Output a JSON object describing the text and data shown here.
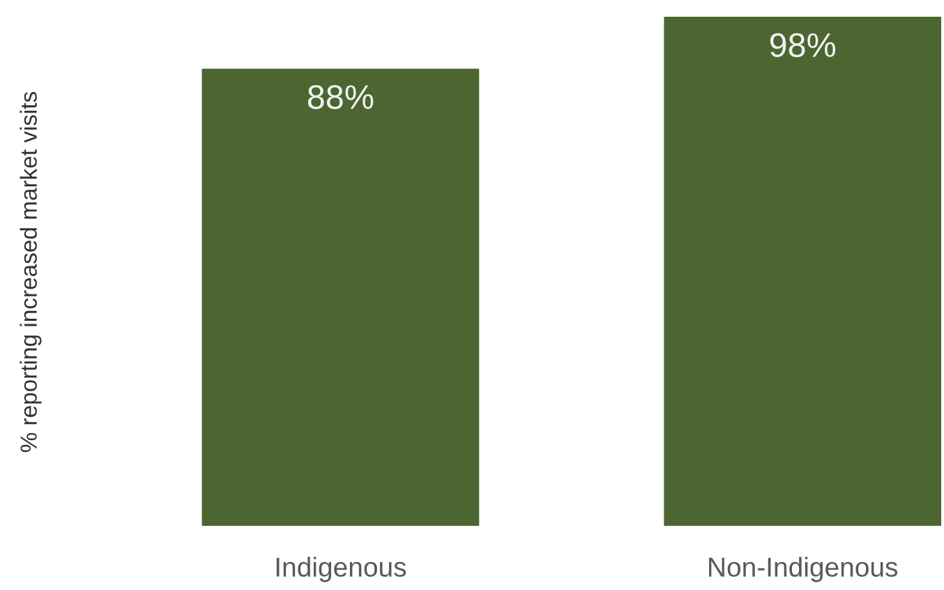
{
  "chart_data": {
    "type": "bar",
    "ylabel": "% reporting increased market visits",
    "categories": [
      "Indigenous",
      "Non-Indigenous"
    ],
    "values": [
      88,
      98
    ],
    "value_labels": [
      "88%",
      "98%"
    ],
    "color": "#4c6631",
    "tick_labels": "x",
    "grid": false,
    "legend": false
  }
}
